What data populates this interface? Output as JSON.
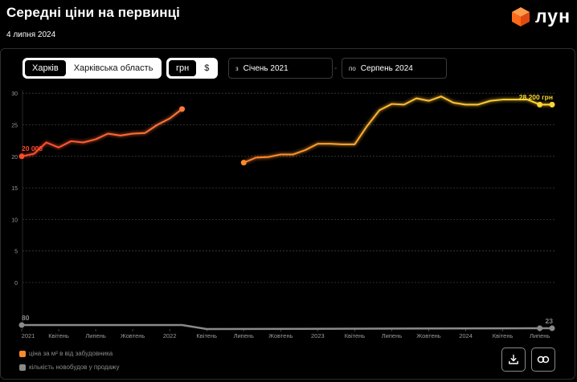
{
  "header": {
    "title": "Середні ціни на первинці",
    "date": "4 липня 2024"
  },
  "logo": {
    "text": "лун",
    "icon": "cube-logo-icon",
    "color": "#ff6a1a"
  },
  "region_tabs": [
    {
      "label": "Харків",
      "active": true
    },
    {
      "label": "Харківська область",
      "active": false
    }
  ],
  "currency_tabs": [
    {
      "label": "грн",
      "active": true
    },
    {
      "label": "$",
      "active": false
    }
  ],
  "date_from": {
    "prefix": "з",
    "value": "Січень 2021"
  },
  "date_to": {
    "prefix": "по",
    "value": "Серпень 2024"
  },
  "date_separator": "-",
  "legend": [
    {
      "label": "ціна за м² в від забудовника",
      "color": "#ff8a2a"
    },
    {
      "label": "кількість новобудов у продажу",
      "color": "#8a8a8a"
    }
  ],
  "buttons": {
    "download_icon": "download-icon",
    "link_icon": "link-icon"
  },
  "chart_data": {
    "type": "line",
    "x_tick_labels": [
      "2021",
      "Квітень",
      "Липень",
      "Жовтень",
      "2022",
      "Квітень",
      "Липень",
      "Жовтень",
      "2023",
      "Квітень",
      "Липень",
      "Жовтень",
      "2024",
      "Квітень",
      "Липень"
    ],
    "y_ticks": [
      0,
      5,
      10,
      15,
      20,
      25,
      30
    ],
    "ylim": [
      0,
      30
    ],
    "grid": "horizontal dashed",
    "series": [
      {
        "segment": "2021-01 to 2022-02",
        "months_index": [
          0,
          1,
          2,
          3,
          4,
          5,
          6,
          7,
          8,
          9,
          10,
          11,
          12,
          13
        ],
        "values": [
          20.0,
          20.4,
          22.2,
          21.4,
          22.4,
          22.2,
          22.7,
          23.6,
          23.3,
          23.6,
          23.7,
          25.0,
          26.0,
          27.5
        ],
        "color_start": "#ff4a2a",
        "color_end": "#ff7a3a"
      },
      {
        "segment": "2022-07 to 2024-08",
        "months_index": [
          18,
          19,
          20,
          21,
          22,
          23,
          24,
          25,
          26,
          27,
          28,
          29,
          30,
          31,
          32,
          33,
          34,
          35,
          36,
          37,
          38,
          39,
          40,
          41,
          42,
          43
        ],
        "values": [
          19.0,
          19.8,
          19.9,
          20.3,
          20.3,
          21.0,
          22.0,
          22.0,
          21.9,
          21.9,
          24.8,
          27.3,
          28.3,
          28.2,
          29.2,
          28.8,
          29.5,
          28.5,
          28.2,
          28.2,
          28.8,
          29.0,
          29.0,
          29.0,
          28.2,
          28.2
        ],
        "color_start": "#ff8a2a",
        "color_end": "#ffd633"
      }
    ],
    "projects_series": {
      "values_start": 80,
      "values_end": 23,
      "color": "#8a8a8a"
    },
    "annotations": [
      {
        "text": "20 000",
        "color": "#ff4a2a"
      },
      {
        "text": "28 200 грн",
        "color": "#ffd633"
      },
      {
        "text": "80",
        "color": "#8a8a8a"
      },
      {
        "text": "23",
        "color": "#8a8a8a"
      }
    ]
  }
}
